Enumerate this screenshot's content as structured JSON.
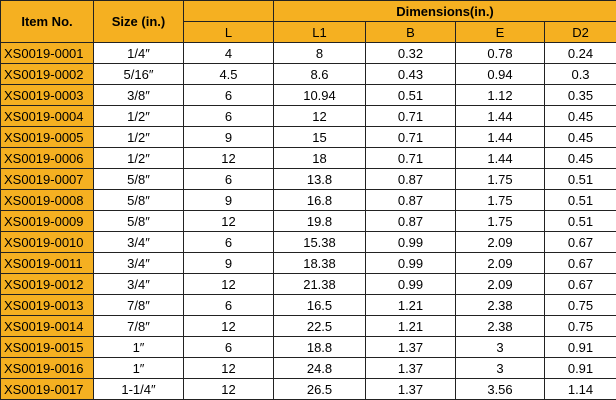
{
  "table": {
    "headers": {
      "item": "Item No.",
      "size": "Size  (in.)",
      "group": "Dimensions(in.)",
      "dims": [
        "L",
        "L1",
        "B",
        "E",
        "D2"
      ]
    },
    "rows": [
      [
        "XS0019-0001",
        "1/4″",
        "4",
        "8",
        "0.32",
        "0.78",
        "0.24"
      ],
      [
        "XS0019-0002",
        "5/16″",
        "4.5",
        "8.6",
        "0.43",
        "0.94",
        "0.3"
      ],
      [
        "XS0019-0003",
        "3/8″",
        "6",
        "10.94",
        "0.51",
        "1.12",
        "0.35"
      ],
      [
        "XS0019-0004",
        "1/2″",
        "6",
        "12",
        "0.71",
        "1.44",
        "0.45"
      ],
      [
        "XS0019-0005",
        "1/2″",
        "9",
        "15",
        "0.71",
        "1.44",
        "0.45"
      ],
      [
        "XS0019-0006",
        "1/2″",
        "12",
        "18",
        "0.71",
        "1.44",
        "0.45"
      ],
      [
        "XS0019-0007",
        "5/8″",
        "6",
        "13.8",
        "0.87",
        "1.75",
        "0.51"
      ],
      [
        "XS0019-0008",
        "5/8″",
        "9",
        "16.8",
        "0.87",
        "1.75",
        "0.51"
      ],
      [
        "XS0019-0009",
        "5/8″",
        "12",
        "19.8",
        "0.87",
        "1.75",
        "0.51"
      ],
      [
        "XS0019-0010",
        "3/4″",
        "6",
        "15.38",
        "0.99",
        "2.09",
        "0.67"
      ],
      [
        "XS0019-0011",
        "3/4″",
        "9",
        "18.38",
        "0.99",
        "2.09",
        "0.67"
      ],
      [
        "XS0019-0012",
        "3/4″",
        "12",
        "21.38",
        "0.99",
        "2.09",
        "0.67"
      ],
      [
        "XS0019-0013",
        "7/8″",
        "6",
        "16.5",
        "1.21",
        "2.38",
        "0.75"
      ],
      [
        "XS0019-0014",
        "7/8″",
        "12",
        "22.5",
        "1.21",
        "2.38",
        "0.75"
      ],
      [
        "XS0019-0015",
        "1″",
        "6",
        "18.8",
        "1.37",
        "3",
        "0.91"
      ],
      [
        "XS0019-0016",
        "1″",
        "12",
        "24.8",
        "1.37",
        "3",
        "0.91"
      ],
      [
        "XS0019-0017",
        "1-1/4″",
        "12",
        "26.5",
        "1.37",
        "3.56",
        "1.14"
      ]
    ]
  }
}
